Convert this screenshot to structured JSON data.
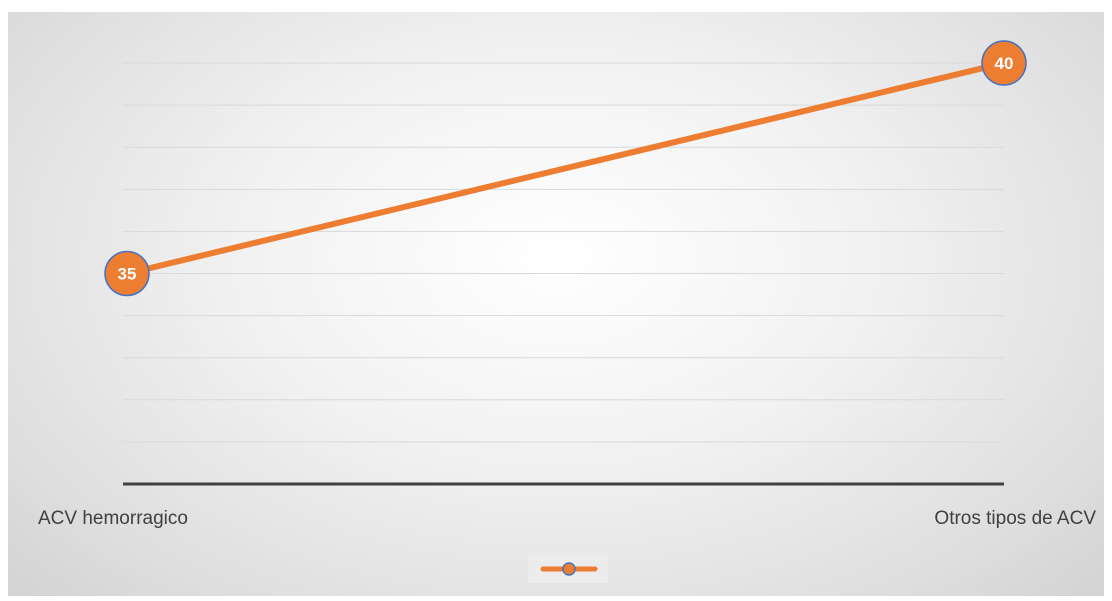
{
  "chart_data": {
    "type": "line",
    "title": "",
    "xlabel": "",
    "ylabel": "",
    "categories": [
      "ACV hemorragico",
      "Otros tipos de ACV"
    ],
    "series": [
      {
        "values": [
          35,
          40
        ],
        "data_labels": [
          "35",
          "40"
        ],
        "color": "#ED7D31",
        "marker_edge_color": "#4472C4"
      }
    ],
    "ylim": [
      30,
      40.5
    ],
    "grid": true,
    "legend": "bottom",
    "axis_line_color": "#404040"
  }
}
